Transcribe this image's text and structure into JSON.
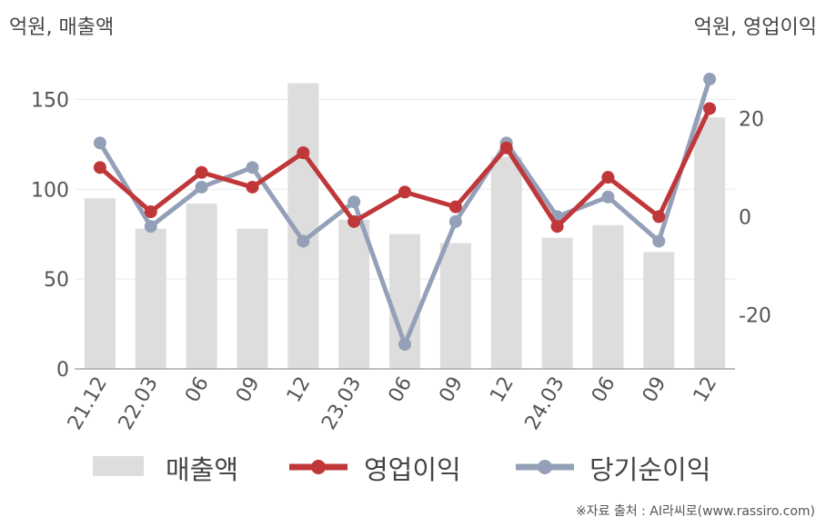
{
  "units": {
    "left": "억원, 매출액",
    "right": "억원, 영업이익"
  },
  "source": "※자료 출처 : AI라씨로(www.rassiro.com)",
  "legend": [
    {
      "label": "매출액",
      "color": "#dddddd"
    },
    {
      "label": "영업이익",
      "color": "#c0373a"
    },
    {
      "label": "당기순이익",
      "color": "#94a0b8"
    }
  ],
  "chart_data": {
    "type": "bar+line",
    "categories": [
      "21.12",
      "22.03",
      "06",
      "09",
      "12",
      "23.03",
      "06",
      "09",
      "12",
      "24.03",
      "06",
      "09",
      "12"
    ],
    "y_left": {
      "ticks": [
        0,
        50,
        100,
        150
      ],
      "range": [
        0,
        175
      ]
    },
    "y_right": {
      "ticks": [
        -20,
        0,
        20
      ],
      "range": [
        -31,
        33
      ]
    },
    "series": [
      {
        "name": "매출액",
        "type": "bar",
        "axis": "left",
        "values": [
          95,
          78,
          92,
          78,
          159,
          83,
          75,
          70,
          118,
          73,
          80,
          65,
          140
        ]
      },
      {
        "name": "영업이익",
        "type": "line",
        "axis": "right",
        "values": [
          10,
          1,
          9,
          6,
          13,
          -1,
          5,
          2,
          14,
          -2,
          8,
          0,
          22
        ]
      },
      {
        "name": "당기순이익",
        "type": "line",
        "axis": "right",
        "values": [
          15,
          -2,
          6,
          10,
          -5,
          3,
          -26,
          -1,
          15,
          0,
          4,
          -5,
          28
        ]
      }
    ],
    "grid": true
  }
}
